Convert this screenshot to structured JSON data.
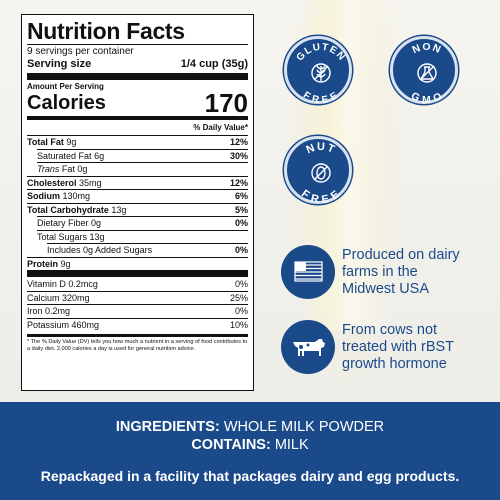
{
  "nutrition": {
    "title": "Nutrition Facts",
    "servings": "9 servings per container",
    "serving_size_label": "Serving size",
    "serving_size_value": "1/4 cup (35g)",
    "amount_per_serving": "Amount Per Serving",
    "calories_label": "Calories",
    "calories_value": "170",
    "dv_header": "% Daily Value*",
    "rows": [
      {
        "label": "Total Fat",
        "amount": "9g",
        "dv": "12%"
      },
      {
        "label": "Saturated Fat",
        "amount": "6g",
        "dv": "30%"
      },
      {
        "label": "Trans",
        "label2": "Fat 0g",
        "dv": ""
      },
      {
        "label": "Cholesterol",
        "amount": "35mg",
        "dv": "12%"
      },
      {
        "label": "Sodium",
        "amount": "130mg",
        "dv": "6%"
      },
      {
        "label": "Total Carbohydrate",
        "amount": "13g",
        "dv": "5%"
      },
      {
        "label": "Dietary Fiber",
        "amount": "0g",
        "dv": "0%"
      },
      {
        "label": "Total Sugars",
        "amount": "13g",
        "dv": ""
      },
      {
        "label": "Includes 0g Added Sugars",
        "dv": "0%"
      },
      {
        "label": "Protein",
        "amount": "9g",
        "dv": ""
      }
    ],
    "vitamins": [
      {
        "label": "Vitamin D 0.2mcg",
        "dv": "0%"
      },
      {
        "label": "Calcium 320mg",
        "dv": "25%"
      },
      {
        "label": "Iron 0.2mg",
        "dv": "0%"
      },
      {
        "label": "Potassium 460mg",
        "dv": "10%"
      }
    ],
    "footnote": "* The % Daily Value (DV) tells you how much a nutrient in a serving of food contributes to a daily diet. 2,000 calories a day is used for general nutrition advice."
  },
  "badges": {
    "gluten_free": {
      "top": "GLUTEN",
      "bottom": "FREE",
      "icon": "wheat-icon"
    },
    "non_gmo": {
      "top": "NON",
      "bottom": "GMO",
      "icon": "flask-icon"
    },
    "nut_free": {
      "top": "NUT",
      "bottom": "FREE",
      "icon": "nut-icon"
    }
  },
  "claims": [
    {
      "icon": "us-flag-icon",
      "lines": [
        "Produced on dairy",
        "farms in the",
        "Midwest USA"
      ]
    },
    {
      "icon": "cow-icon",
      "lines": [
        "From cows not",
        "treated with rBST",
        "growth hormone"
      ]
    }
  ],
  "footer": {
    "ingredients_label": "INGREDIENTS:",
    "ingredients_value": "WHOLE MILK POWDER",
    "contains_label": "CONTAINS:",
    "contains_value": "MILK",
    "repack": "Repackaged in a facility that packages dairy and egg products."
  },
  "colors": {
    "brand_blue": "#1b4a8b",
    "text_dark": "#111111",
    "background": "#f4f3ee"
  }
}
